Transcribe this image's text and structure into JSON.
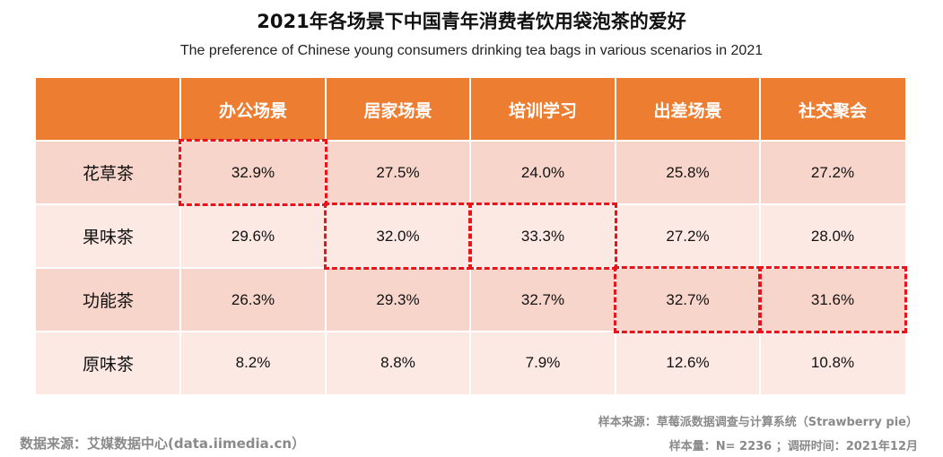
{
  "title_cn": "2021年各场景下中国青年消费者饮用袋泡茶的爱好",
  "title_en": "The preference of Chinese young consumers drinking tea bags in various scenarios in 2021",
  "colors": {
    "header": "#ed7d31",
    "row_odd": "#f8d5ca",
    "row_even": "#fce9e4",
    "highlight": "#e8141b"
  },
  "chart_data": {
    "type": "table",
    "columns": [
      "办公场景",
      "居家场景",
      "培训学习",
      "出差场景",
      "社交聚会"
    ],
    "rows": [
      {
        "label": "花草茶",
        "values": [
          "32.9%",
          "27.5%",
          "24.0%",
          "25.8%",
          "27.2%"
        ]
      },
      {
        "label": "果味茶",
        "values": [
          "29.6%",
          "32.0%",
          "33.3%",
          "27.2%",
          "28.0%"
        ]
      },
      {
        "label": "功能茶",
        "values": [
          "26.3%",
          "29.3%",
          "32.7%",
          "32.7%",
          "31.6%"
        ]
      },
      {
        "label": "原味茶",
        "values": [
          "8.2%",
          "8.8%",
          "7.9%",
          "12.6%",
          "10.8%"
        ]
      }
    ],
    "highlighted_cells": [
      [
        0,
        0
      ],
      [
        1,
        1
      ],
      [
        1,
        2
      ],
      [
        2,
        3
      ],
      [
        2,
        4
      ]
    ]
  },
  "footer": {
    "source_left": "数据来源：艾媒数据中心(data.iimedia.cn）",
    "sample_source": "样本来源：草莓派数据调查与计算系统（Strawberry  pie）",
    "sample_size": "样本量：N= 2236 ；调研时间：2021年12月"
  }
}
